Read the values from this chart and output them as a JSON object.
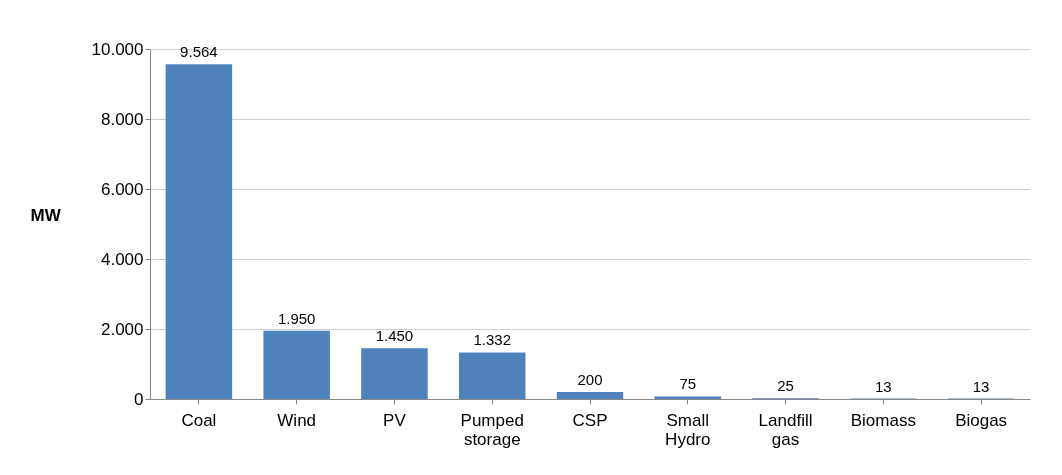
{
  "chart_data": {
    "type": "bar",
    "ylabel": "MW",
    "categories": [
      "Coal",
      "Wind",
      "PV",
      "Pumped storage",
      "CSP",
      "Small Hydro",
      "Landfill gas",
      "Biomass",
      "Biogas"
    ],
    "values": [
      9564,
      1950,
      1450,
      1332,
      200,
      75,
      25,
      13,
      13
    ],
    "value_labels": [
      "9.564",
      "1.950",
      "1.450",
      "1.332",
      "200",
      "75",
      "25",
      "13",
      "13"
    ],
    "color": "#4f81bd",
    "ylim": [
      0,
      10000
    ],
    "yticks": [
      0,
      {
        "value": 2000,
        "label": "2.000"
      },
      {
        "value": 4000,
        "label": "4.000"
      },
      {
        "value": 6000,
        "label": "6.000"
      },
      {
        "value": 8000,
        "label": "8.000"
      },
      {
        "value": 10000,
        "label": "10.000"
      }
    ],
    "grid": "y"
  }
}
